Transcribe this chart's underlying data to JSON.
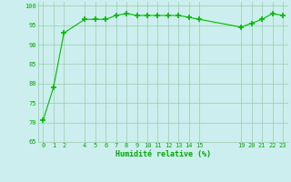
{
  "x": [
    0,
    1,
    2,
    4,
    5,
    6,
    7,
    8,
    9,
    10,
    11,
    12,
    13,
    14,
    15,
    19,
    20,
    21,
    22,
    23
  ],
  "y": [
    70.5,
    79,
    93,
    96.5,
    96.5,
    96.5,
    97.5,
    98,
    97.5,
    97.5,
    97.5,
    97.5,
    97.5,
    97,
    96.5,
    94.5,
    95.5,
    96.5,
    98,
    97.5
  ],
  "line_color": "#00bb00",
  "marker": "+",
  "marker_color": "#00bb00",
  "background_color": "#cceeee",
  "grid_color": "#99ccaa",
  "xlabel": "Humidité relative (%)",
  "xlabel_color": "#00aa00",
  "tick_color": "#00aa00",
  "xlim": [
    -0.5,
    23.5
  ],
  "ylim": [
    65,
    101
  ],
  "yticks": [
    65,
    70,
    75,
    80,
    85,
    90,
    95,
    100
  ],
  "xticks": [
    0,
    1,
    2,
    4,
    5,
    6,
    7,
    8,
    9,
    10,
    11,
    12,
    13,
    14,
    15,
    19,
    20,
    21,
    22,
    23
  ]
}
